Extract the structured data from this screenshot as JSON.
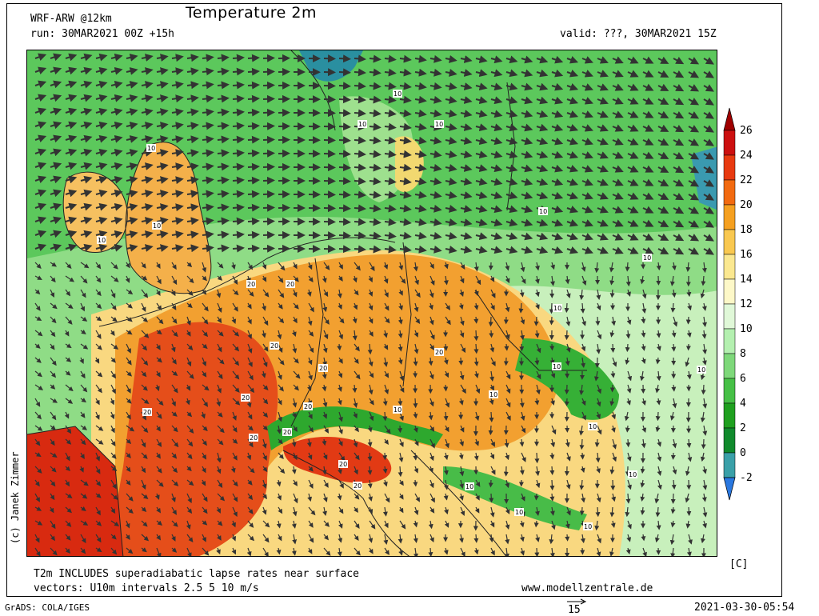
{
  "header": {
    "model": "WRF-ARW @12km",
    "title": "Temperature 2m",
    "run": "run: 30MAR2021 00Z +15h",
    "valid": "valid: ???, 30MAR2021 15Z"
  },
  "footer": {
    "note1": "T2m INCLUDES superadiabatic lapse rates near surface",
    "note2": "vectors: U10m intervals 2.5 5 10 m/s",
    "website": "www.modellzentrale.de",
    "software": "GrADS: COLA/IGES",
    "timestamp": "2021-03-30-05:54",
    "vector_ref": "15"
  },
  "credit": "(c) Janek Zimmer",
  "colorbar": {
    "unit": "[C]",
    "ticks": [
      "26",
      "24",
      "22",
      "20",
      "18",
      "16",
      "14",
      "12",
      "10",
      "8",
      "6",
      "4",
      "2",
      "0",
      "-2"
    ],
    "colors": [
      "#a00000",
      "#cc1010",
      "#e83a10",
      "#f26a10",
      "#f5a020",
      "#f9c850",
      "#fbe890",
      "#fdf8c8",
      "#e0f8d8",
      "#b4f0b0",
      "#7ed87a",
      "#46c046",
      "#1fa01f",
      "#108a2c",
      "#3aa0a8",
      "#2a78e0"
    ]
  },
  "map_labels": [
    {
      "text": "10"
    },
    {
      "text": "10"
    },
    {
      "text": "10"
    },
    {
      "text": "10"
    },
    {
      "text": "10"
    },
    {
      "text": "10"
    },
    {
      "text": "10"
    },
    {
      "text": "10"
    },
    {
      "text": "10"
    },
    {
      "text": "10"
    },
    {
      "text": "10"
    },
    {
      "text": "10"
    },
    {
      "text": "20"
    },
    {
      "text": "20"
    },
    {
      "text": "20"
    },
    {
      "text": "20"
    },
    {
      "text": "20"
    },
    {
      "text": "20"
    },
    {
      "text": "20"
    },
    {
      "text": "20"
    },
    {
      "text": "20"
    },
    {
      "text": "20"
    },
    {
      "text": "20"
    },
    {
      "text": "20"
    },
    {
      "text": "10"
    },
    {
      "text": "10"
    },
    {
      "text": "10"
    },
    {
      "text": "10"
    },
    {
      "text": "10"
    },
    {
      "text": "10"
    }
  ]
}
